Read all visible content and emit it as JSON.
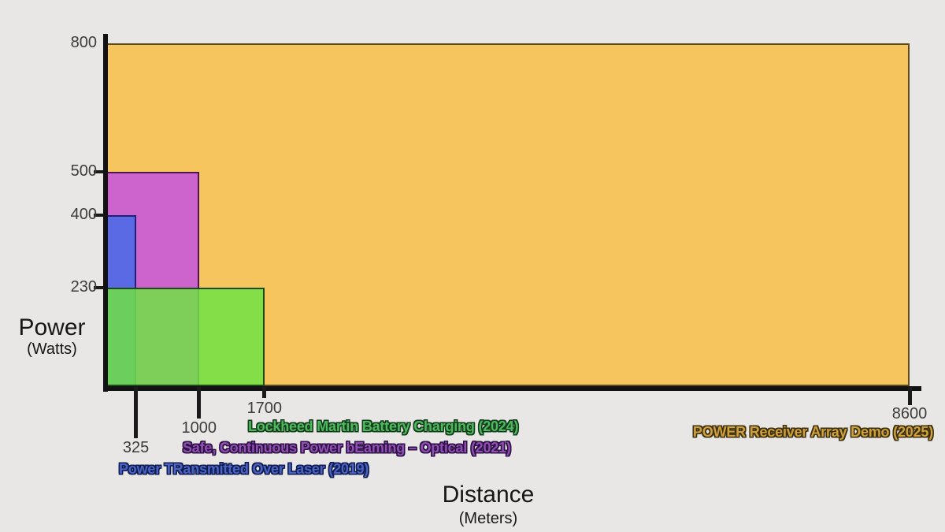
{
  "page": {
    "background": "#e8e7e5"
  },
  "chart_data": {
    "type": "bar",
    "description": "Overlapping extent rectangles comparing laser power-beaming demonstrations by power (watts) and distance (meters)",
    "xlabel": "Distance",
    "xlabel_sub": "(Meters)",
    "ylabel": "Power",
    "ylabel_sub": "(Watts)",
    "xlim": [
      0,
      8600
    ],
    "ylim": [
      0,
      800
    ],
    "x_ticks": [
      325,
      1000,
      1700,
      8600
    ],
    "y_ticks": [
      800,
      500,
      400,
      230
    ],
    "grid": false,
    "axis_color": "#121212",
    "tick_label_color": "#3c3c3c",
    "series": [
      {
        "id": "power-receiver-2025",
        "name": "POWER Receiver Array Demo (2025)",
        "power_watts": 800,
        "distance_meters": 8600,
        "fill": "#f7c55d",
        "fill_opacity": 1,
        "border": "#5d4b1e",
        "label_color": "#cfa03c",
        "label_outline": "#3c300e"
      },
      {
        "id": "scope-optical-2021",
        "name": "Safe, Continuous Power bEaming – Optical (2021)",
        "power_watts": 500,
        "distance_meters": 1000,
        "fill": "#cd63cd",
        "fill_opacity": 1,
        "border": "#4e1553",
        "label_color": "#8f4fb3",
        "label_outline": "#2e1145"
      },
      {
        "id": "ptrol-2019",
        "name": "Power TRansmitted Over Laser (2019)",
        "power_watts": 400,
        "distance_meters": 325,
        "fill": "#5a69e4",
        "fill_opacity": 1,
        "border": "#1f2377",
        "label_color": "#4a63c4",
        "label_outline": "#111d50"
      },
      {
        "id": "lockheed-battery-2024",
        "name": "Lockheed Martin Battery Charging (2024)",
        "power_watts": 230,
        "distance_meters": 1700,
        "fill": "#6ee244",
        "fill_opacity": 0.85,
        "border": "#1e4a1a",
        "label_color": "#4dbb5d",
        "label_outline": "#163c1e"
      }
    ]
  }
}
